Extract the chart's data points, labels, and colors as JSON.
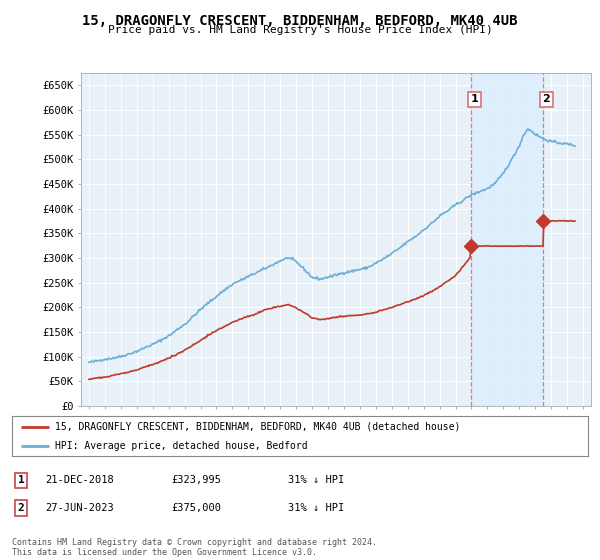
{
  "title": "15, DRAGONFLY CRESCENT, BIDDENHAM, BEDFORD, MK40 4UB",
  "subtitle": "Price paid vs. HM Land Registry's House Price Index (HPI)",
  "ylabel_ticks": [
    "£0",
    "£50K",
    "£100K",
    "£150K",
    "£200K",
    "£250K",
    "£300K",
    "£350K",
    "£400K",
    "£450K",
    "£500K",
    "£550K",
    "£600K",
    "£650K"
  ],
  "ytick_values": [
    0,
    50000,
    100000,
    150000,
    200000,
    250000,
    300000,
    350000,
    400000,
    450000,
    500000,
    550000,
    600000,
    650000
  ],
  "xlim_start": 1994.5,
  "xlim_end": 2026.5,
  "ylim": [
    0,
    675000
  ],
  "hpi_color": "#6baed6",
  "price_color": "#c0392b",
  "marker1_date": 2018.97,
  "marker1_value": 323995,
  "marker1_label": "1",
  "marker2_date": 2023.49,
  "marker2_value": 375000,
  "marker2_label": "2",
  "vline_color": "#e07070",
  "shade_color": "#ddeeff",
  "legend_house": "15, DRAGONFLY CRESCENT, BIDDENHAM, BEDFORD, MK40 4UB (detached house)",
  "legend_hpi": "HPI: Average price, detached house, Bedford",
  "table_rows": [
    {
      "num": "1",
      "date": "21-DEC-2018",
      "price": "£323,995",
      "hpi": "31% ↓ HPI"
    },
    {
      "num": "2",
      "date": "27-JUN-2023",
      "price": "£375,000",
      "hpi": "31% ↓ HPI"
    }
  ],
  "footer": "Contains HM Land Registry data © Crown copyright and database right 2024.\nThis data is licensed under the Open Government Licence v3.0.",
  "background_color": "#ffffff",
  "plot_bg_color": "#e8f0f8",
  "hpi_key_years": [
    1995,
    1996,
    1997,
    1998,
    1999,
    2000,
    2001,
    2002,
    2003,
    2004,
    2005,
    2006,
    2007,
    2007.5,
    2008,
    2008.5,
    2009,
    2009.5,
    2010,
    2010.5,
    2011,
    2011.5,
    2012,
    2012.5,
    2013,
    2013.5,
    2014,
    2014.5,
    2015,
    2015.5,
    2016,
    2016.5,
    2017,
    2017.5,
    2018,
    2018.5,
    2019,
    2019.5,
    2020,
    2020.5,
    2021,
    2021.5,
    2022,
    2022.25,
    2022.5,
    2022.75,
    2023,
    2023.5,
    2024,
    2024.5,
    2025,
    2025.5
  ],
  "hpi_key_vals": [
    88000,
    95000,
    103000,
    113000,
    126000,
    143000,
    166000,
    196000,
    224000,
    248000,
    264000,
    280000,
    295000,
    300000,
    292000,
    278000,
    262000,
    258000,
    262000,
    268000,
    272000,
    275000,
    278000,
    282000,
    290000,
    298000,
    308000,
    320000,
    332000,
    343000,
    355000,
    368000,
    382000,
    393000,
    405000,
    415000,
    425000,
    432000,
    438000,
    448000,
    468000,
    495000,
    525000,
    545000,
    558000,
    555000,
    548000,
    540000,
    535000,
    532000,
    530000,
    528000
  ],
  "price_key_years": [
    1995,
    1996,
    1997,
    1998,
    1999,
    2000,
    2001,
    2002,
    2003,
    2004,
    2005,
    2006,
    2007,
    2007.5,
    2008,
    2008.5,
    2009,
    2009.5,
    2010,
    2011,
    2012,
    2013,
    2014,
    2015,
    2016,
    2017,
    2018,
    2018.9,
    2018.97,
    2019.1,
    2019.5,
    2020,
    2020.5,
    2021,
    2021.5,
    2022,
    2022.5,
    2023,
    2023.4,
    2023.49,
    2023.6,
    2024,
    2024.5,
    2025,
    2025.5
  ],
  "price_key_vals": [
    55000,
    58000,
    64000,
    72000,
    82000,
    96000,
    112000,
    132000,
    152000,
    168000,
    180000,
    192000,
    200000,
    204000,
    198000,
    188000,
    177000,
    173000,
    176000,
    181000,
    184000,
    190000,
    200000,
    212000,
    225000,
    242000,
    265000,
    300000,
    323995,
    323995,
    323995,
    323995,
    323995,
    323995,
    323995,
    323995,
    323995,
    323995,
    323995,
    375000,
    375000,
    375000,
    375000,
    375000,
    375000
  ]
}
